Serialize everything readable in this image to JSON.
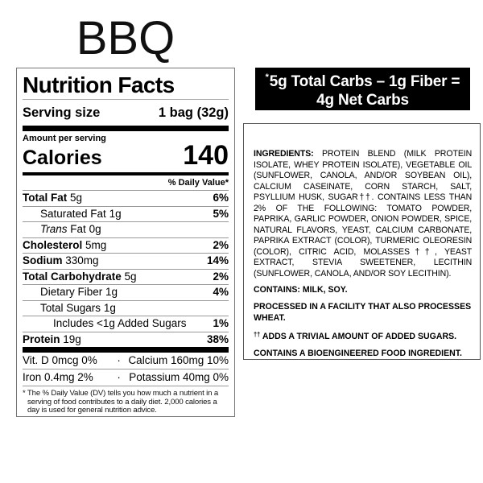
{
  "page": {
    "title": "BBQ"
  },
  "colors": {
    "banner_bg": "#000000",
    "banner_fg": "#ffffff",
    "text": "#000000"
  },
  "net_carbs_banner": {
    "asterisk": "*",
    "line1": "5g Total Carbs – 1g Fiber =",
    "line2": "4g Net Carbs"
  },
  "nutrition": {
    "title": "Nutrition Facts",
    "serving_size_label": "Serving size",
    "serving_size_value": "1 bag (32g)",
    "amount_label": "Amount per serving",
    "calories_label": "Calories",
    "calories_value": "140",
    "daily_value_header": "% Daily Value*",
    "rows": [
      {
        "label": "Total Fat",
        "amount": "5g",
        "dv": "6%"
      },
      {
        "label": "Saturated Fat",
        "amount": "1g",
        "dv": "5%"
      },
      {
        "label_italic": "Trans",
        "label_rest": "Fat",
        "amount": "0g",
        "dv": ""
      },
      {
        "label": "Cholesterol",
        "amount": "5mg",
        "dv": "2%"
      },
      {
        "label": "Sodium",
        "amount": "330mg",
        "dv": "14%"
      },
      {
        "label": "Total Carbohydrate",
        "amount": "5g",
        "dv": "2%"
      },
      {
        "label": "Dietary Fiber",
        "amount": "1g",
        "dv": "4%"
      },
      {
        "label": "Total Sugars",
        "amount": "1g",
        "dv": ""
      },
      {
        "label": "Includes <1g Added Sugars",
        "amount": "",
        "dv": "1%"
      },
      {
        "label": "Protein",
        "amount": "19g",
        "dv": "38%"
      }
    ],
    "micronutrients": [
      {
        "left": "Vit. D 0mcg 0%",
        "dot": "·",
        "right": "Calcium 160mg 10%"
      },
      {
        "left": "Iron 0.4mg 2%",
        "dot": "·",
        "right": "Potassium 40mg 0%"
      }
    ],
    "footnote": "* The % Daily Value (DV) tells you how much a nutrient in a serving of food contributes to a daily diet. 2,000 calories a day is used for general nutrition advice."
  },
  "ingredients_panel": {
    "ingredients_label": "INGREDIENTS:",
    "ingredients_text": "PROTEIN BLEND (MILK PROTEIN ISOLATE, WHEY PROTEIN ISOLATE), VEGETABLE OIL (SUNFLOWER, CANOLA, AND/OR SOYBEAN OIL), CALCIUM CASEINATE, CORN STARCH, SALT, PSYLLIUM HUSK, SUGAR††. CONTAINS LESS THAN 2% OF THE FOLLOWING: TOMATO POWDER, PAPRIKA, GARLIC POWDER, ONION POWDER, SPICE, NATURAL FLAVORS, YEAST, CALCIUM CARBONATE, PAPRIKA EXTRACT (COLOR), TURMERIC OLEORESIN (COLOR), CITRIC ACID, MOLASSES††, YEAST EXTRACT, STEVIA SWEETENER, LECITHIN (SUNFLOWER, CANOLA, AND/OR SOY LECITHIN).",
    "contains": "CONTAINS: MILK, SOY.",
    "facility": "PROCESSED IN A FACILITY THAT ALSO PROCESSES WHEAT.",
    "dagger_prefix": "††",
    "dagger_text": "ADDS A TRIVIAL AMOUNT OF ADDED SUGARS.",
    "bioengineered": "CONTAINS A BIOENGINEERED FOOD INGREDIENT."
  }
}
